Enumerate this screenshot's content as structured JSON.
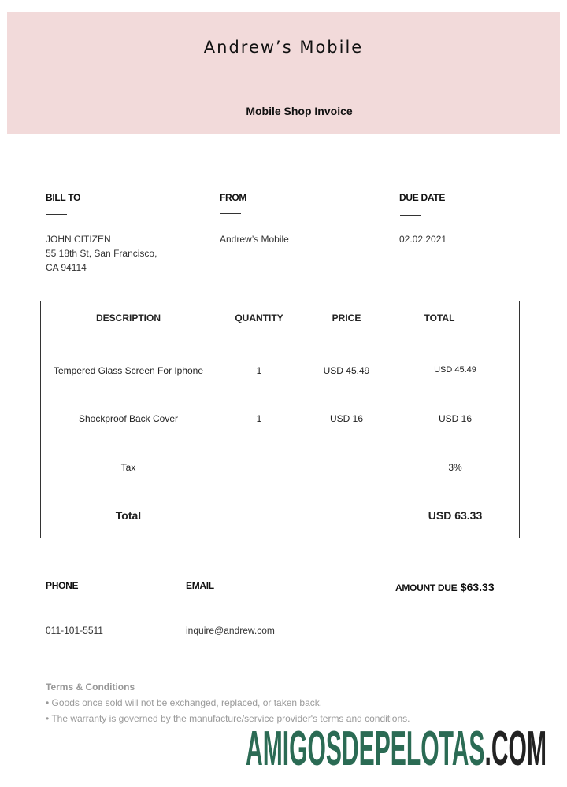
{
  "header": {
    "title": "Andrew’s Mobile",
    "subtitle": "Mobile Shop Invoice",
    "bg_color": "#f2dada"
  },
  "bill_to": {
    "label": "BILL TO",
    "lines": [
      "JOHN CITIZEN",
      "55 18th St, San Francisco,",
      "CA 94114"
    ]
  },
  "from": {
    "label": "FROM",
    "value": "Andrew’s Mobile"
  },
  "due_date": {
    "label": "DUE DATE",
    "value": "02.02.2021"
  },
  "table": {
    "headers": [
      "DESCRIPTION",
      "QUANTITY",
      "PRICE",
      "TOTAL"
    ],
    "rows": [
      [
        "Tempered Glass Screen For Iphone",
        "1",
        "USD 45.49",
        "USD 45.49"
      ],
      [
        "Shockproof Back Cover",
        "1",
        "USD 16",
        "USD 16"
      ]
    ],
    "tax": {
      "label": "Tax",
      "value": "3%"
    },
    "total": {
      "label": "Total",
      "value": "USD 63.33"
    }
  },
  "phone": {
    "label": "PHONE",
    "value": "011-101-5511"
  },
  "email": {
    "label": "EMAIL",
    "value": "inquire@andrew.com"
  },
  "amount_due": {
    "label": "AMOUNT DUE",
    "value": "$63.33"
  },
  "terms": {
    "title": "Terms & Conditions",
    "items": [
      "• Goods once sold will not be exchanged, replaced, or taken back.",
      "• The warranty is governed by the manufacture/service provider's terms and conditions."
    ]
  },
  "watermark": {
    "main": "AMIGOSDEPELOTAS",
    "suffix": ".COM",
    "main_color": "#2b6b54",
    "suffix_color": "#222222"
  }
}
